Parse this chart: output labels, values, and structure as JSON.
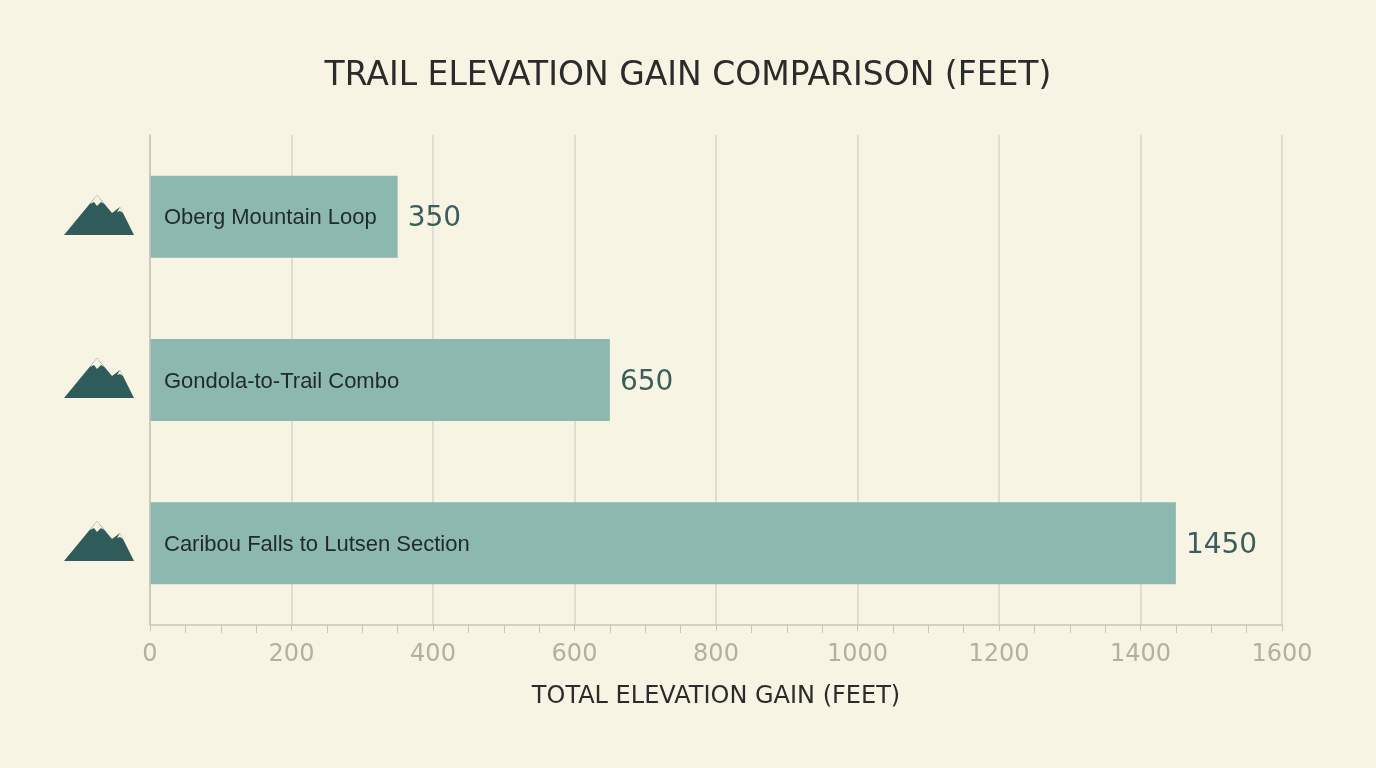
{
  "chart_data": {
    "type": "bar",
    "orientation": "horizontal",
    "title": "TRAIL ELEVATION GAIN COMPARISON (FEET)",
    "xlabel": "TOTAL ELEVATION GAIN (FEET)",
    "categories": [
      "Oberg Mountain Loop",
      "Gondola-to-Trail Combo",
      "Caribou Falls to Lutsen Section"
    ],
    "values": [
      350,
      650,
      1450
    ],
    "color": "#8db8b0",
    "xlim": [
      0,
      1600
    ],
    "xticks": [
      0,
      200,
      400,
      600,
      800,
      1000,
      1200,
      1400,
      1600
    ],
    "grid": "x",
    "data_labels": true
  }
}
